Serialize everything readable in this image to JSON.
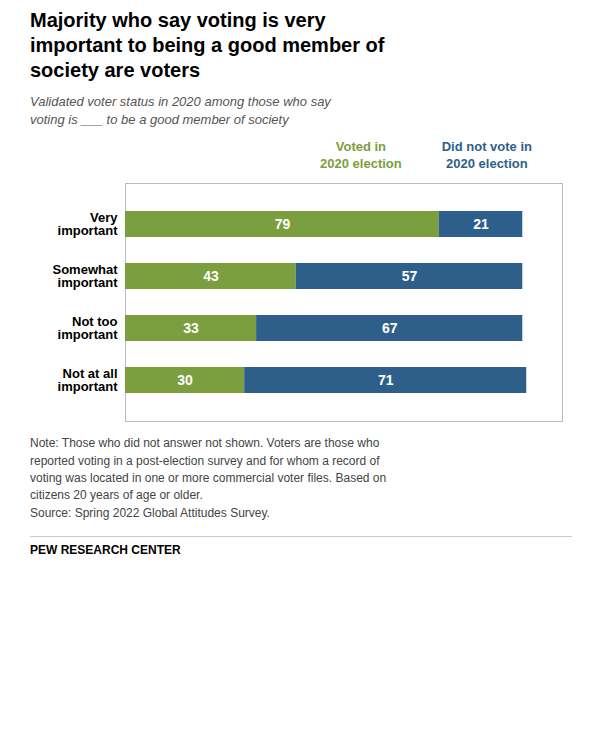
{
  "chart_data": {
    "type": "bar",
    "orientation": "horizontal",
    "stacked": true,
    "title": "Majority who say voting is very\nimportant to being a good member of\nsociety are voters",
    "subtitle": "Validated voter status in 2020 among those who say\nvoting is ___ to be a good member of society",
    "categories": [
      "Very\nimportant",
      "Somewhat\nimportant",
      "Not too\nimportant",
      "Not at all\nimportant"
    ],
    "series": [
      {
        "name": "Voted in\n2020 election",
        "color": "#7b9e3e",
        "values": [
          79,
          43,
          33,
          30
        ]
      },
      {
        "name": "Did not vote in\n2020 election",
        "color": "#2e5f8a",
        "values": [
          21,
          57,
          67,
          71
        ]
      }
    ],
    "xlim": [
      0,
      110
    ],
    "tick_labels": "y",
    "data_labels": true,
    "grid": false,
    "legend": "top",
    "note": "Note: Those who did not answer not shown. Voters are those who\nreported voting in a post-election survey and for whom a record of\nvoting was located in one or more commercial voter files. Based on\ncitizens 20 years of age or older.\nSource: Spring 2022 Global Attitudes Survey.",
    "footer": "PEW RESEARCH CENTER"
  }
}
